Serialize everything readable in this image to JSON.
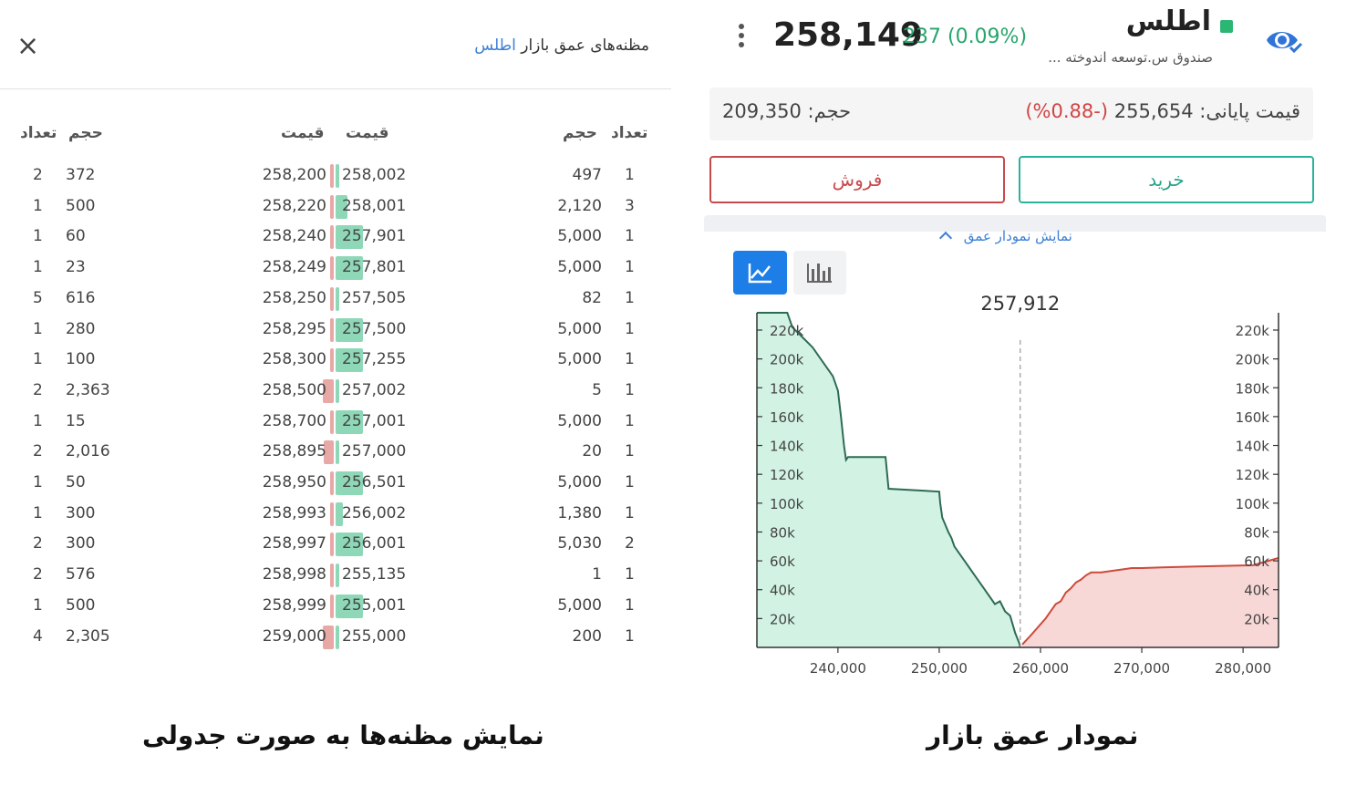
{
  "orderbook_panel": {
    "title_prefix": "مظنه‌های عمق بازار",
    "title_symbol": "اطلس",
    "close_label": "×",
    "headers": {
      "ask_count": "تعداد",
      "ask_volume": "حجم",
      "ask_price": "قیمت",
      "bid_price": "قیمت",
      "bid_volume": "حجم",
      "bid_count": "تعداد"
    },
    "rows": [
      {
        "ask_count": "2",
        "ask_volume": "372",
        "ask_price": "258,200",
        "ask_level": 0.02,
        "bid_price": "258,002",
        "bid_volume": "497",
        "bid_count": "1",
        "bid_level": 0.02
      },
      {
        "ask_count": "1",
        "ask_volume": "500",
        "ask_price": "258,220",
        "ask_level": 0.03,
        "bid_price": "258,001",
        "bid_volume": "2,120",
        "bid_count": "3",
        "bid_level": 0.25
      },
      {
        "ask_count": "1",
        "ask_volume": "60",
        "ask_price": "258,240",
        "ask_level": 0.01,
        "bid_price": "257,901",
        "bid_volume": "5,000",
        "bid_count": "1",
        "bid_level": 0.6
      },
      {
        "ask_count": "1",
        "ask_volume": "23",
        "ask_price": "258,249",
        "ask_level": 0.01,
        "bid_price": "257,801",
        "bid_volume": "5,000",
        "bid_count": "1",
        "bid_level": 0.6
      },
      {
        "ask_count": "5",
        "ask_volume": "616",
        "ask_price": "258,250",
        "ask_level": 0.03,
        "bid_price": "257,505",
        "bid_volume": "82",
        "bid_count": "1",
        "bid_level": 0.01
      },
      {
        "ask_count": "1",
        "ask_volume": "280",
        "ask_price": "258,295",
        "ask_level": 0.01,
        "bid_price": "257,500",
        "bid_volume": "5,000",
        "bid_count": "1",
        "bid_level": 0.6
      },
      {
        "ask_count": "1",
        "ask_volume": "100",
        "ask_price": "258,300",
        "ask_level": 0.01,
        "bid_price": "257,255",
        "bid_volume": "5,000",
        "bid_count": "1",
        "bid_level": 0.6
      },
      {
        "ask_count": "2",
        "ask_volume": "2,363",
        "ask_price": "258,500",
        "ask_level": 0.25,
        "bid_price": "257,002",
        "bid_volume": "5",
        "bid_count": "1",
        "bid_level": 0.01
      },
      {
        "ask_count": "1",
        "ask_volume": "15",
        "ask_price": "258,700",
        "ask_level": 0.01,
        "bid_price": "257,001",
        "bid_volume": "5,000",
        "bid_count": "1",
        "bid_level": 0.6
      },
      {
        "ask_count": "2",
        "ask_volume": "2,016",
        "ask_price": "258,895",
        "ask_level": 0.22,
        "bid_price": "257,000",
        "bid_volume": "20",
        "bid_count": "1",
        "bid_level": 0.01
      },
      {
        "ask_count": "1",
        "ask_volume": "50",
        "ask_price": "258,950",
        "ask_level": 0.01,
        "bid_price": "256,501",
        "bid_volume": "5,000",
        "bid_count": "1",
        "bid_level": 0.6
      },
      {
        "ask_count": "1",
        "ask_volume": "300",
        "ask_price": "258,993",
        "ask_level": 0.01,
        "bid_price": "256,002",
        "bid_volume": "1,380",
        "bid_count": "1",
        "bid_level": 0.15
      },
      {
        "ask_count": "2",
        "ask_volume": "300",
        "ask_price": "258,997",
        "ask_level": 0.01,
        "bid_price": "256,001",
        "bid_volume": "5,030",
        "bid_count": "2",
        "bid_level": 0.6
      },
      {
        "ask_count": "2",
        "ask_volume": "576",
        "ask_price": "258,998",
        "ask_level": 0.02,
        "bid_price": "255,135",
        "bid_volume": "1",
        "bid_count": "1",
        "bid_level": 0.01
      },
      {
        "ask_count": "1",
        "ask_volume": "500",
        "ask_price": "258,999",
        "ask_level": 0.02,
        "bid_price": "255,001",
        "bid_volume": "5,000",
        "bid_count": "1",
        "bid_level": 0.6
      },
      {
        "ask_count": "4",
        "ask_volume": "2,305",
        "ask_price": "259,000",
        "ask_level": 0.25,
        "bid_price": "255,000",
        "bid_volume": "200",
        "bid_count": "1",
        "bid_level": 0.01
      }
    ]
  },
  "symbol_panel": {
    "name": "اطلس",
    "description": "صندوق س.توسعه اندوخته ...",
    "last_price": "258,149",
    "change": "237 (0.09%)",
    "final_price_label": "قیمت پایانی:",
    "final_price_value": "255,654",
    "final_price_change": "(-0.88%)",
    "volume_label": "حجم:",
    "volume_value": "209,350",
    "buy_label": "خرید",
    "sell_label": "فروش",
    "chart_toggle_label": "نمایش نمودار عمق",
    "colors": {
      "positive": "#28a56c",
      "negative": "#d04545",
      "bid_fill": "#d2f3e4",
      "bid_line": "#2e6b55",
      "ask_fill": "#f8d7d7",
      "ask_line": "#cc4b3a"
    }
  },
  "chart_data": {
    "type": "area",
    "mid_price_label": "257,912",
    "mid_price": 258000,
    "xlim": [
      232000,
      283500
    ],
    "ylim": [
      0,
      232000
    ],
    "x_ticks": [
      240000,
      250000,
      260000,
      270000,
      280000
    ],
    "x_tick_labels": [
      "240,000",
      "250,000",
      "260,000",
      "270,000",
      "280,000"
    ],
    "y_ticks": [
      20000,
      40000,
      60000,
      80000,
      100000,
      120000,
      140000,
      160000,
      180000,
      200000,
      220000
    ],
    "y_tick_labels": [
      "20k",
      "40k",
      "60k",
      "80k",
      "100k",
      "120k",
      "140k",
      "160k",
      "180k",
      "200k",
      "220k"
    ],
    "series": [
      {
        "side": "bid",
        "x": [
          232000,
          235000,
          235500,
          236500,
          237500,
          238500,
          239500,
          240000,
          240300,
          240600,
          240800,
          241000,
          244700,
          245000,
          250000,
          250100,
          250300,
          250600,
          250900,
          251200,
          251500,
          252000,
          252500,
          253000,
          253500,
          254000,
          254500,
          255000,
          255500,
          256000,
          256500,
          257000,
          257500,
          257900,
          258000
        ],
        "y": [
          232000,
          232000,
          222000,
          215000,
          208000,
          198000,
          188000,
          178000,
          160000,
          140000,
          130000,
          132000,
          132000,
          110000,
          108000,
          100000,
          90000,
          85000,
          80000,
          76000,
          70000,
          65000,
          60000,
          55000,
          50000,
          45000,
          40000,
          35000,
          30000,
          32000,
          25000,
          22000,
          10000,
          3000,
          0
        ]
      },
      {
        "side": "ask",
        "x": [
          258200,
          258600,
          259000,
          259500,
          260000,
          260500,
          261000,
          261500,
          262000,
          262500,
          263000,
          263500,
          264000,
          264500,
          265000,
          266000,
          267000,
          268000,
          269000,
          270000,
          272000,
          275000,
          278000,
          281000,
          283500
        ],
        "y": [
          2000,
          5000,
          8000,
          12000,
          16000,
          20000,
          25000,
          30000,
          32000,
          38000,
          41000,
          45000,
          47000,
          50000,
          52000,
          52000,
          53000,
          54000,
          55000,
          55000,
          55500,
          56000,
          56500,
          57000,
          62000
        ]
      }
    ]
  },
  "captions": {
    "left": "نمایش مظنه‌ها به صورت جدولی",
    "right": "نمودار عمق بازار"
  }
}
